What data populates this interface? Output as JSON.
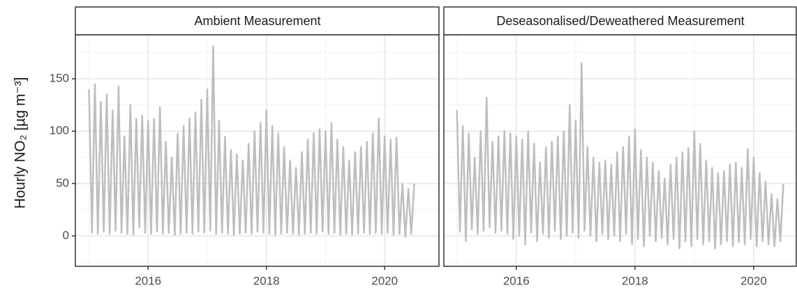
{
  "chart_data": [
    {
      "type": "line",
      "title": "Ambient Measurement",
      "ylabel": "Hourly NO₂ [µg m⁻³]",
      "xlim": [
        2014.77,
        2020.93
      ],
      "xticks": [
        2016,
        2018,
        2020
      ],
      "xticks_minor": [
        2015,
        2017,
        2019
      ],
      "ylim": [
        -29,
        192
      ],
      "yticks": [
        0,
        50,
        100,
        150
      ],
      "yticks_minor": [
        -25,
        25,
        75,
        125,
        175
      ],
      "grid": true,
      "x": [
        2015,
        2015.05,
        2015.1,
        2015.15,
        2015.2,
        2015.25,
        2015.3,
        2015.35,
        2015.4,
        2015.45,
        2015.5,
        2015.55,
        2015.6,
        2015.65,
        2015.7,
        2015.75,
        2015.8,
        2015.85,
        2015.9,
        2015.95,
        2016,
        2016.05,
        2016.1,
        2016.15,
        2016.2,
        2016.25,
        2016.3,
        2016.35,
        2016.4,
        2016.45,
        2016.5,
        2016.55,
        2016.6,
        2016.65,
        2016.7,
        2016.75,
        2016.8,
        2016.85,
        2016.9,
        2016.95,
        2017,
        2017.05,
        2017.1,
        2017.15,
        2017.2,
        2017.25,
        2017.3,
        2017.35,
        2017.4,
        2017.45,
        2017.5,
        2017.55,
        2017.6,
        2017.65,
        2017.7,
        2017.75,
        2017.8,
        2017.85,
        2017.9,
        2017.95,
        2018,
        2018.05,
        2018.1,
        2018.15,
        2018.2,
        2018.25,
        2018.3,
        2018.35,
        2018.4,
        2018.45,
        2018.5,
        2018.55,
        2018.6,
        2018.65,
        2018.7,
        2018.75,
        2018.8,
        2018.85,
        2018.9,
        2018.95,
        2019,
        2019.05,
        2019.1,
        2019.15,
        2019.2,
        2019.25,
        2019.3,
        2019.35,
        2019.4,
        2019.45,
        2019.5,
        2019.55,
        2019.6,
        2019.65,
        2019.7,
        2019.75,
        2019.8,
        2019.85,
        2019.9,
        2019.95,
        2020,
        2020.05,
        2020.1,
        2020.15,
        2020.2,
        2020.25,
        2020.3,
        2020.35,
        2020.4,
        2020.45,
        2020.5
      ],
      "series": [
        {
          "color": "#bebebe",
          "values": [
            140,
            3,
            145,
            2,
            128,
            4,
            135,
            2,
            120,
            5,
            143,
            3,
            95,
            2,
            125,
            1,
            112,
            8,
            115,
            3,
            110,
            2,
            112,
            4,
            123,
            2,
            90,
            3,
            75,
            1,
            98,
            2,
            105,
            3,
            112,
            2,
            118,
            4,
            130,
            3,
            140,
            5,
            181,
            2,
            110,
            3,
            95,
            2,
            82,
            1,
            78,
            2,
            72,
            3,
            88,
            2,
            100,
            4,
            108,
            3,
            120,
            2,
            105,
            1,
            98,
            2,
            85,
            3,
            72,
            2,
            65,
            1,
            80,
            2,
            92,
            3,
            98,
            2,
            102,
            4,
            100,
            2,
            108,
            3,
            92,
            1,
            85,
            2,
            72,
            1,
            80,
            2,
            85,
            3,
            90,
            2,
            98,
            3,
            112,
            2,
            95,
            3,
            92,
            1,
            94,
            2,
            50,
            -1,
            45,
            2,
            50
          ]
        }
      ]
    },
    {
      "type": "line",
      "title": "Deseasonalised/Deweathered Measurement",
      "xlim": [
        2014.78,
        2020.73
      ],
      "xticks": [
        2016,
        2018,
        2020
      ],
      "xticks_minor": [
        2015,
        2017,
        2019
      ],
      "ylim": [
        -29,
        192
      ],
      "yticks": [
        0,
        50,
        100,
        150
      ],
      "yticks_minor": [
        -25,
        25,
        75,
        125,
        175
      ],
      "grid": true,
      "x": [
        2015,
        2015.05,
        2015.1,
        2015.15,
        2015.2,
        2015.25,
        2015.3,
        2015.35,
        2015.4,
        2015.45,
        2015.5,
        2015.55,
        2015.6,
        2015.65,
        2015.7,
        2015.75,
        2015.8,
        2015.85,
        2015.9,
        2015.95,
        2016,
        2016.05,
        2016.1,
        2016.15,
        2016.2,
        2016.25,
        2016.3,
        2016.35,
        2016.4,
        2016.45,
        2016.5,
        2016.55,
        2016.6,
        2016.65,
        2016.7,
        2016.75,
        2016.8,
        2016.85,
        2016.9,
        2016.95,
        2017,
        2017.05,
        2017.1,
        2017.15,
        2017.2,
        2017.25,
        2017.3,
        2017.35,
        2017.4,
        2017.45,
        2017.5,
        2017.55,
        2017.6,
        2017.65,
        2017.7,
        2017.75,
        2017.8,
        2017.85,
        2017.9,
        2017.95,
        2018,
        2018.05,
        2018.1,
        2018.15,
        2018.2,
        2018.25,
        2018.3,
        2018.35,
        2018.4,
        2018.45,
        2018.5,
        2018.55,
        2018.6,
        2018.65,
        2018.7,
        2018.75,
        2018.8,
        2018.85,
        2018.9,
        2018.95,
        2019,
        2019.05,
        2019.1,
        2019.15,
        2019.2,
        2019.25,
        2019.3,
        2019.35,
        2019.4,
        2019.45,
        2019.5,
        2019.55,
        2019.6,
        2019.65,
        2019.7,
        2019.75,
        2019.8,
        2019.85,
        2019.9,
        2019.95,
        2020,
        2020.05,
        2020.1,
        2020.15,
        2020.2,
        2020.25,
        2020.3,
        2020.35,
        2020.4,
        2020.45,
        2020.5
      ],
      "series": [
        {
          "color": "#bebebe",
          "values": [
            120,
            4,
            105,
            -5,
            98,
            6,
            75,
            2,
            100,
            5,
            132,
            8,
            90,
            3,
            95,
            5,
            100,
            2,
            98,
            -3,
            95,
            0,
            92,
            -8,
            100,
            3,
            88,
            -5,
            70,
            2,
            85,
            -2,
            90,
            5,
            95,
            -3,
            100,
            0,
            125,
            3,
            110,
            -2,
            165,
            5,
            85,
            0,
            75,
            -5,
            70,
            2,
            72,
            -3,
            68,
            0,
            80,
            -5,
            85,
            2,
            95,
            -8,
            102,
            -3,
            82,
            -10,
            75,
            0,
            70,
            -5,
            62,
            -2,
            55,
            -8,
            68,
            -3,
            75,
            -12,
            80,
            -5,
            84,
            -10,
            100,
            -3,
            88,
            -8,
            72,
            -5,
            65,
            -12,
            60,
            -8,
            62,
            -5,
            68,
            -10,
            70,
            -6,
            65,
            -8,
            83,
            -3,
            75,
            -10,
            60,
            -5,
            52,
            -8,
            40,
            -10,
            35,
            -5,
            50
          ]
        }
      ]
    }
  ]
}
